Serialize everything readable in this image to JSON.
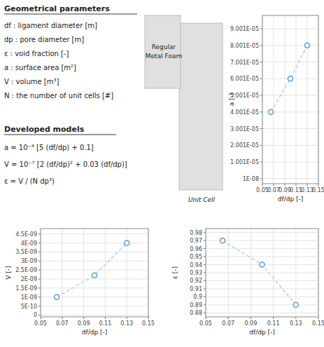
{
  "chart_data": [
    {
      "type": "scatter",
      "x": [
        0.065,
        0.1,
        0.13
      ],
      "series": [
        {
          "type": "line",
          "line_style": "dashed",
          "color": "#b8cfe0",
          "values": [
            4.001e-05,
            6.001e-05,
            8.001e-05
          ]
        },
        {
          "type": "scatter",
          "marker": "circle",
          "color": "#5b9bd5",
          "values": [
            4.001e-05,
            6.001e-05,
            8.001e-05
          ]
        }
      ],
      "x_label": "df/dp [-]",
      "y_label": "a [-]",
      "xlim": [
        0.05,
        0.15
      ],
      "xticks": [
        0.05,
        0.07,
        0.09,
        0.11,
        0.13,
        0.15
      ],
      "ylim": [
        -3e-06,
        9.8e-05
      ],
      "yticks": [
        {
          "value": 1e-08,
          "label": "1E-08"
        },
        {
          "value": 1.001e-05,
          "label": "1.001E-05"
        },
        {
          "value": 2.001e-05,
          "label": "2.001E-05"
        },
        {
          "value": 3.001e-05,
          "label": "3.001E-05"
        },
        {
          "value": 4.001e-05,
          "label": "4.001E-05"
        },
        {
          "value": 5.001e-05,
          "label": "5.001E-05"
        },
        {
          "value": 6.001e-05,
          "label": "6.001E-05"
        },
        {
          "value": 7.001e-05,
          "label": "7.001E-05"
        },
        {
          "value": 8.001e-05,
          "label": "8.001E-05"
        },
        {
          "value": 9.001e-05,
          "label": "9.001E-05"
        }
      ],
      "grid": true,
      "annotations": [
        "Geometrical parameters",
        "df : ligament diameter [m]",
        "dp : pore diameter [m]",
        "ε : void fraction [-]",
        "a : surface area [m²]",
        "V : volume [m³]",
        "N : the number of unit cells [#]",
        "Developed models",
        "a = 10⁻⁴ [5 (df/dp) + 0.1]",
        "V = 10⁻⁷ [2 (df/dp)² + 0.03 (df/dp)]",
        "ε = V / (N dp³)",
        "Regular\nMetal Foam",
        "Unit Cell"
      ]
    },
    {
      "type": "scatter",
      "x": [
        0.065,
        0.1,
        0.13
      ],
      "series": [
        {
          "type": "line",
          "line_style": "dashed",
          "color": "#b8cfe0",
          "values": [
            1e-09,
            2.2e-09,
            4e-09
          ]
        },
        {
          "type": "scatter",
          "marker": "circle",
          "color": "#5b9bd5",
          "values": [
            1e-09,
            2.2e-09,
            4e-09
          ]
        }
      ],
      "x_label": "df/dp [-]",
      "y_label": "V [-]",
      "xlim": [
        0.05,
        0.15
      ],
      "xticks": [
        0.05,
        0.07,
        0.09,
        0.11,
        0.13,
        0.15
      ],
      "ylim": [
        -1e-10,
        4.8e-09
      ],
      "yticks": [
        0,
        {
          "value": 5e-10,
          "label": "5E-10"
        },
        {
          "value": 1e-09,
          "label": "1E-09"
        },
        {
          "value": 1.5e-09,
          "label": "1.5E-09"
        },
        {
          "value": 2e-09,
          "label": "2E-09"
        },
        {
          "value": 2.5e-09,
          "label": "2.5E-09"
        },
        {
          "value": 3e-09,
          "label": "3E-09"
        },
        {
          "value": 3.5e-09,
          "label": "3.5E-09"
        },
        {
          "value": 4e-09,
          "label": "4E-09"
        },
        {
          "value": 4.5e-09,
          "label": "4.5E-09"
        }
      ],
      "grid": true
    },
    {
      "type": "scatter",
      "x": [
        0.065,
        0.1,
        0.13
      ],
      "series": [
        {
          "type": "line",
          "line_style": "dashed",
          "color": "#b8cfe0",
          "values": [
            0.97,
            0.94,
            0.89
          ]
        },
        {
          "type": "scatter",
          "marker": "circle",
          "color": "#5b9bd5",
          "values": [
            0.97,
            0.94,
            0.89
          ]
        }
      ],
      "x_label": "df/dp [-]",
      "y_label": "ε [-]",
      "xlim": [
        0.05,
        0.15
      ],
      "xticks": [
        0.05,
        0.07,
        0.09,
        0.11,
        0.13,
        0.15
      ],
      "ylim": [
        0.875,
        0.985
      ],
      "yticks": [
        0.88,
        0.89,
        0.9,
        0.91,
        0.92,
        0.93,
        0.94,
        0.95,
        0.96,
        0.97,
        0.98
      ],
      "grid": true
    }
  ]
}
